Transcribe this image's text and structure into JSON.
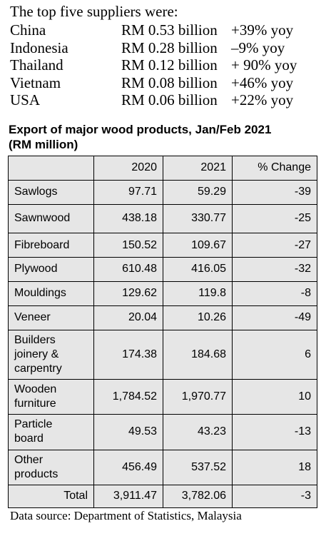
{
  "suppliers": {
    "heading": "The top five suppliers were:",
    "rows": [
      {
        "country": "China",
        "value": "RM 0.53 billion",
        "yoy": "+39% yoy"
      },
      {
        "country": "Indonesia",
        "value": "RM 0.28 billion",
        "yoy": "–9% yoy"
      },
      {
        "country": "Thailand",
        "value": "RM 0.12 billion",
        "yoy": "+ 90% yoy"
      },
      {
        "country": "Vietnam",
        "value": "RM 0.08 billion",
        "yoy": "+46% yoy"
      },
      {
        "country": "USA",
        "value": "RM 0.06 billion",
        "yoy": "+22% yoy"
      }
    ]
  },
  "table": {
    "title_line1": "Export of major wood products, Jan/Feb 2021",
    "title_line2": "(RM million)",
    "headers": [
      "",
      "2020",
      "2021",
      "% Change"
    ],
    "rows": [
      {
        "name_lines": [
          "Sawlogs"
        ],
        "y2020": "97.71",
        "y2021": "59.29",
        "change": "-39"
      },
      {
        "name_lines": [
          "Sawnwood"
        ],
        "y2020": "438.18",
        "y2021": "330.77",
        "change": "-25"
      },
      {
        "name_lines": [
          "Fibreboard"
        ],
        "y2020": "150.52",
        "y2021": "109.67",
        "change": "-27"
      },
      {
        "name_lines": [
          "Plywood"
        ],
        "y2020": "610.48",
        "y2021": "416.05",
        "change": "-32"
      },
      {
        "name_lines": [
          "Mouldings"
        ],
        "y2020": "129.62",
        "y2021": "119.8",
        "change": "-8"
      },
      {
        "name_lines": [
          "Veneer"
        ],
        "y2020": "20.04",
        "y2021": "10.26",
        "change": "-49"
      },
      {
        "name_lines": [
          "Builders",
          "joinery &",
          "carpentry"
        ],
        "y2020": "174.38",
        "y2021": "184.68",
        "change": "6"
      },
      {
        "name_lines": [
          "Wooden",
          "furniture"
        ],
        "y2020": "1,784.52",
        "y2021": "1,970.77",
        "change": "10"
      },
      {
        "name_lines": [
          "Particle",
          "board"
        ],
        "y2020": "49.53",
        "y2021": "43.23",
        "change": "-13"
      },
      {
        "name_lines": [
          "Other",
          "products"
        ],
        "y2020": "456.49",
        "y2021": "537.52",
        "change": "18"
      }
    ],
    "total": {
      "label": "Total",
      "y2020": "3,911.47",
      "y2021": "3,782.06",
      "change": "-3"
    }
  },
  "source": "Data source: Department of Statistics, Malaysia"
}
